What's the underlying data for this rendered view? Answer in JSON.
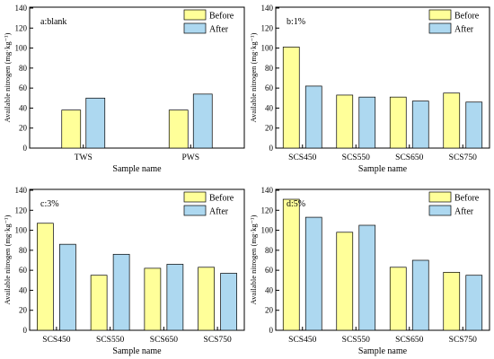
{
  "figure": {
    "ylabel": "Available nitrogen (mg·kg⁻¹)"
  },
  "colors": {
    "before": "#ffff99",
    "after": "#add8f0",
    "stroke": "#000000"
  },
  "chart_data": [
    {
      "type": "bar",
      "title": "a:blank",
      "categories": [
        "TWS",
        "PWS"
      ],
      "series": [
        {
          "name": "Before",
          "values": [
            38,
            38
          ]
        },
        {
          "name": "After",
          "values": [
            50,
            54
          ]
        }
      ],
      "xlabel": "Sample name",
      "ylabel": "Available nitrogen (mg·kg⁻¹)",
      "ylim": [
        0,
        140
      ],
      "yticks": [
        0,
        20,
        40,
        60,
        80,
        100,
        120,
        140
      ],
      "grid": false,
      "legend": "top-right"
    },
    {
      "type": "bar",
      "title": "b:1%",
      "categories": [
        "SCS450",
        "SCS550",
        "SCS650",
        "SCS750"
      ],
      "series": [
        {
          "name": "Before",
          "values": [
            101,
            53,
            51,
            55
          ]
        },
        {
          "name": "After",
          "values": [
            62,
            51,
            47,
            46
          ]
        }
      ],
      "xlabel": "Sample name",
      "ylabel": "Available nitrogen (mg·kg⁻¹)",
      "ylim": [
        0,
        140
      ],
      "yticks": [
        0,
        20,
        40,
        60,
        80,
        100,
        120,
        140
      ],
      "grid": false,
      "legend": "top-right"
    },
    {
      "type": "bar",
      "title": "c:3%",
      "categories": [
        "SCS450",
        "SCS550",
        "SCS650",
        "SCS750"
      ],
      "series": [
        {
          "name": "Before",
          "values": [
            107,
            55,
            62,
            63
          ]
        },
        {
          "name": "After",
          "values": [
            86,
            76,
            66,
            57
          ]
        }
      ],
      "xlabel": "Sample name",
      "ylabel": "Available nitrogen (mg·kg⁻¹)",
      "ylim": [
        0,
        140
      ],
      "yticks": [
        0,
        20,
        40,
        60,
        80,
        100,
        120,
        140
      ],
      "grid": false,
      "legend": "top-right"
    },
    {
      "type": "bar",
      "title": "d:5%",
      "categories": [
        "SCS450",
        "SCS550",
        "SCS650",
        "SCS750"
      ],
      "series": [
        {
          "name": "Before",
          "values": [
            131,
            98,
            63,
            58
          ]
        },
        {
          "name": "After",
          "values": [
            113,
            105,
            70,
            55
          ]
        }
      ],
      "xlabel": "Sample name",
      "ylabel": "Available nitrogen (mg·kg⁻¹)",
      "ylim": [
        0,
        140
      ],
      "yticks": [
        0,
        20,
        40,
        60,
        80,
        100,
        120,
        140
      ],
      "grid": false,
      "legend": "top-right"
    }
  ]
}
